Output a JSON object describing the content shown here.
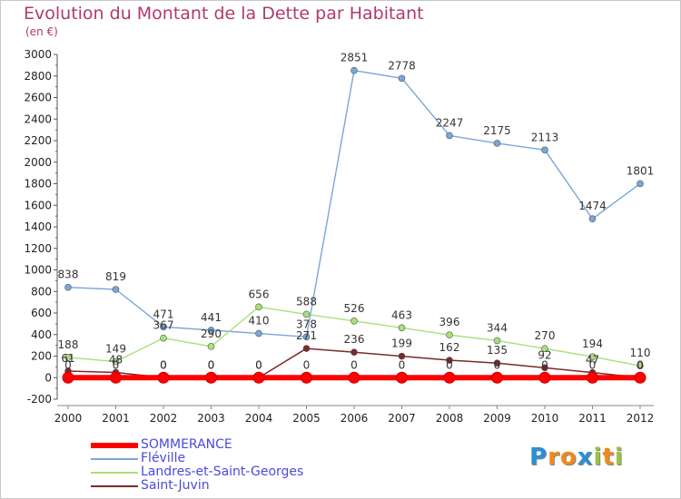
{
  "header": {
    "title": "Evolution du Montant de la Dette par Habitant",
    "unit": "(en €)"
  },
  "logo": {
    "letters": [
      "P",
      "r",
      "o",
      "x",
      "i",
      "t",
      "i"
    ],
    "colors": [
      "#2a8fd6",
      "#f08a1c",
      "#f08a1c",
      "#2a8fd6",
      "#9bc23c",
      "#f08a1c",
      "#9bc23c"
    ]
  },
  "chart_data": {
    "type": "line",
    "title": "Evolution du Montant de la Dette par Habitant",
    "ylabel": "(en €)",
    "xlabel": "",
    "x": [
      "2000",
      "2001",
      "2002",
      "2003",
      "2004",
      "2005",
      "2006",
      "2007",
      "2008",
      "2009",
      "2010",
      "2011",
      "2012"
    ],
    "ylim": [
      -200,
      3000
    ],
    "yticks": [
      "-200",
      "0",
      "200",
      "400",
      "600",
      "800",
      "1000",
      "1200",
      "1400",
      "1600",
      "1800",
      "2000",
      "2200",
      "2400",
      "2600",
      "2800",
      "3000"
    ],
    "grid": false,
    "legend_position": "bottom-left",
    "series": [
      {
        "name": "SOMMERANCE",
        "color": "#ff0000",
        "values": [
          0,
          0,
          0,
          0,
          0,
          0,
          0,
          0,
          0,
          0,
          0,
          0,
          0
        ],
        "labels": [
          "0",
          "0",
          "0",
          "0",
          "0",
          "0",
          "0",
          "0",
          "0",
          "0",
          "0",
          "0",
          "0"
        ]
      },
      {
        "name": "Fléville",
        "color": "#7aa7d8",
        "values": [
          838,
          819,
          471,
          441,
          410,
          378,
          2851,
          2778,
          2247,
          2175,
          2113,
          1474,
          1801
        ],
        "labels": [
          "838",
          "819",
          "471",
          "441",
          "410",
          "378",
          "2851",
          "2778",
          "2247",
          "2175",
          "2113",
          "1474",
          "1801"
        ]
      },
      {
        "name": "Landres-et-Saint-Georges",
        "color": "#a8e07a",
        "values": [
          188,
          149,
          367,
          290,
          656,
          588,
          526,
          463,
          396,
          344,
          270,
          194,
          110
        ],
        "labels": [
          "188",
          "149",
          "367",
          "290",
          "656",
          "588",
          "526",
          "463",
          "396",
          "344",
          "270",
          "194",
          "110"
        ]
      },
      {
        "name": "Saint-Juvin",
        "color": "#7a2a2a",
        "values": [
          61,
          48,
          0,
          0,
          0,
          271,
          236,
          199,
          162,
          135,
          92,
          47,
          0
        ],
        "labels": [
          "61",
          "48",
          "0",
          "0",
          "0",
          "271",
          "236",
          "199",
          "162",
          "135",
          "92",
          "47",
          "0"
        ]
      }
    ]
  }
}
